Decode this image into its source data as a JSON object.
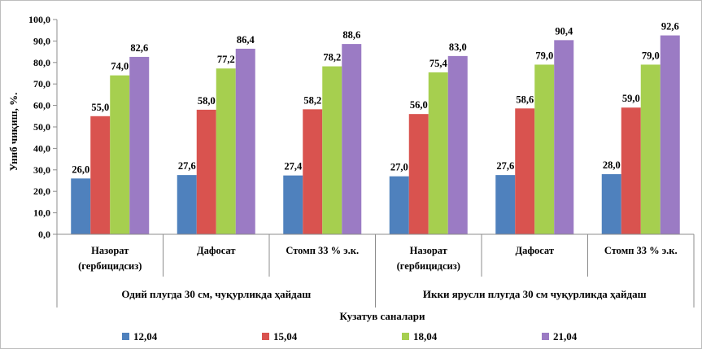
{
  "chart_data": {
    "type": "bar",
    "ylabel": "Униб чиқиш, %.",
    "xlabel": "Кузатув саналари",
    "ylim": [
      0,
      100
    ],
    "ytick_step": 10,
    "ytick_labels": [
      "0,0",
      "10,0",
      "20,0",
      "30,0",
      "40,0",
      "50,0",
      "60,0",
      "70,0",
      "80,0",
      "90,0",
      "100,0"
    ],
    "grid": false,
    "legend_position": "bottom",
    "groups": [
      {
        "label": "Одий плугда 30 см, чуқурликда ҳайдаш",
        "span": [
          0,
          2
        ]
      },
      {
        "label": "Икки ярусли плугда 30 см чуқурликда ҳайдаш",
        "span": [
          3,
          5
        ]
      }
    ],
    "categories": [
      [
        "Назорат",
        "(гербицидсиз)"
      ],
      [
        "Дафосат"
      ],
      [
        "Стомп 33 % э.к."
      ],
      [
        "Назорат",
        "(гербицидсиз)"
      ],
      [
        "Дафосат"
      ],
      [
        "Стомп 33 % э.к."
      ]
    ],
    "series": [
      {
        "name": "12,04",
        "color": "#4f81bd",
        "values": [
          26.0,
          27.6,
          27.4,
          27.0,
          27.6,
          28.0
        ],
        "labels": [
          "26,0",
          "27,6",
          "27,4",
          "27,0",
          "27,6",
          "28,0"
        ]
      },
      {
        "name": "15,04",
        "color": "#d9534f",
        "values": [
          55.0,
          58.0,
          58.2,
          56.0,
          58.6,
          59.0
        ],
        "labels": [
          "55,0",
          "58,0",
          "58,2",
          "56,0",
          "58,6",
          "59,0"
        ]
      },
      {
        "name": "18,04",
        "color": "#a6cf4f",
        "values": [
          74.0,
          77.2,
          78.2,
          75.4,
          79.0,
          79.0
        ],
        "labels": [
          "74,0",
          "77,2",
          "78,2",
          "75,4",
          "79,0",
          "79,0"
        ]
      },
      {
        "name": "21,04",
        "color": "#9b7bc4",
        "values": [
          82.6,
          86.4,
          88.6,
          83.0,
          90.4,
          92.6
        ],
        "labels": [
          "82,6",
          "86,4",
          "88,6",
          "83,0",
          "90,4",
          "92,6"
        ]
      }
    ]
  }
}
